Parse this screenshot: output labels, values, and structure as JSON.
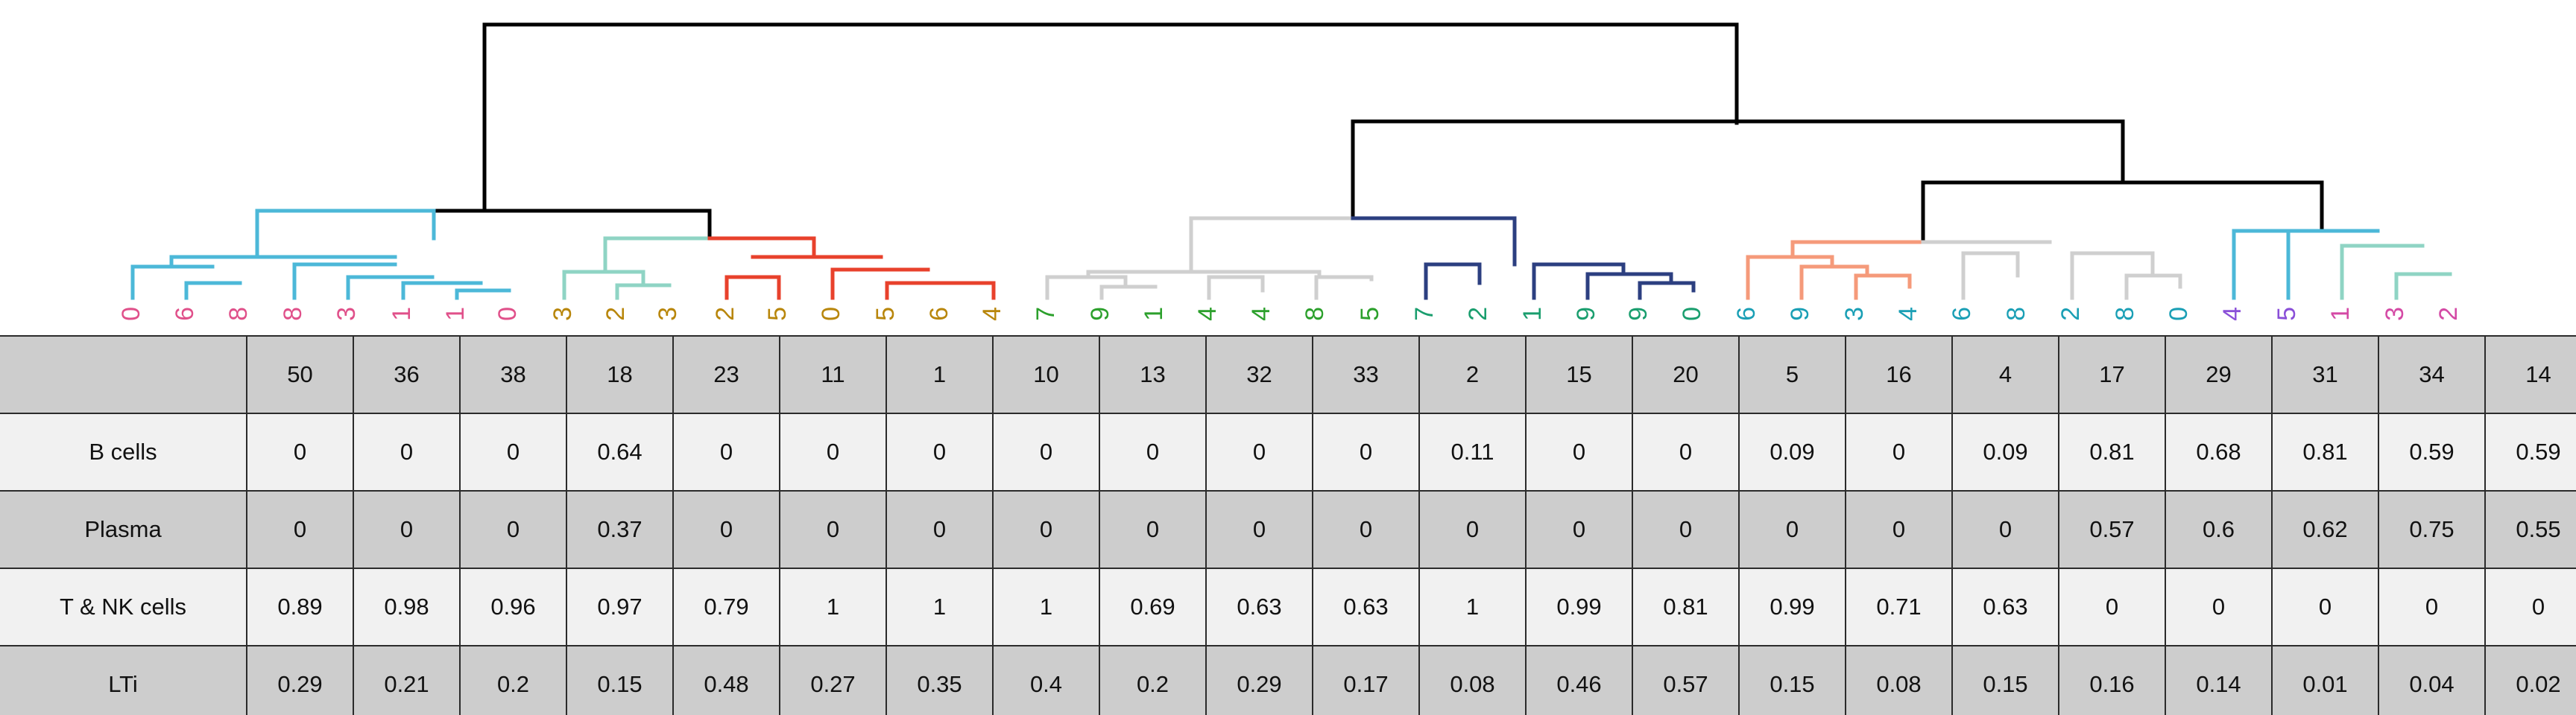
{
  "chart_data": {
    "type": "table",
    "dendrogram": {
      "leaf_labels": [
        "0",
        "6",
        "8",
        "8",
        "3",
        "1",
        "1",
        "0",
        "3",
        "2",
        "3",
        "2",
        "5",
        "0",
        "5",
        "6",
        "4",
        "7",
        "9",
        "1",
        "4",
        "4",
        "8",
        "5",
        "7",
        "2",
        "1",
        "9",
        "9",
        "0",
        "6",
        "9",
        "3",
        "4",
        "6",
        "8",
        "2",
        "8",
        "0",
        "4",
        "5",
        "1",
        "3",
        "2"
      ],
      "leaf_colors": [
        "#e0508a",
        "#e0508a",
        "#e0508a",
        "#e0508a",
        "#e0508a",
        "#e0508a",
        "#e0508a",
        "#e0508a",
        "#b8860b",
        "#b8860b",
        "#b8860b",
        "#b8860b",
        "#b8860b",
        "#b8860b",
        "#b8860b",
        "#b8860b",
        "#b8860b",
        "#2ca02c",
        "#2ca02c",
        "#2ca02c",
        "#2ca02c",
        "#2ca02c",
        "#2ca02c",
        "#2ca02c",
        "#1a9e6e",
        "#1a9e6e",
        "#1a9e6e",
        "#1a9e6e",
        "#1a9e6e",
        "#1a9e6e",
        "#1a9fb5",
        "#1a9fb5",
        "#1a9fb5",
        "#1a9fb5",
        "#1a9fb5",
        "#1a9fb5",
        "#1a9fb5",
        "#1a9fb5",
        "#1a9fb5",
        "#8a4fd8",
        "#8a4fd8",
        "#d44aa5",
        "#d44aa5",
        "#d44aa5"
      ],
      "branch_colors": {
        "root": "#000000",
        "light_blue": "#4cb8d8",
        "mint": "#8fd4c4",
        "red": "#e8412c",
        "gray": "#cfcfcf",
        "navy": "#2c3f80",
        "salmon": "#f59a7a"
      }
    },
    "columns": [
      "50",
      "36",
      "38",
      "18",
      "23",
      "11",
      "1",
      "10",
      "13",
      "32",
      "33",
      "2",
      "15",
      "20",
      "5",
      "16",
      "4",
      "17",
      "29",
      "31",
      "34",
      "14"
    ],
    "rows": [
      {
        "label": "B cells",
        "values": [
          "0",
          "0",
          "0",
          "0.64",
          "0",
          "0",
          "0",
          "0",
          "0",
          "0",
          "0",
          "0.11",
          "0",
          "0",
          "0.09",
          "0",
          "0.09",
          "0.81",
          "0.68",
          "0.81",
          "0.59",
          "0.59"
        ]
      },
      {
        "label": "Plasma",
        "values": [
          "0",
          "0",
          "0",
          "0.37",
          "0",
          "0",
          "0",
          "0",
          "0",
          "0",
          "0",
          "0",
          "0",
          "0",
          "0",
          "0",
          "0",
          "0.57",
          "0.6",
          "0.62",
          "0.75",
          "0.55"
        ]
      },
      {
        "label": "T & NK cells",
        "values": [
          "0.89",
          "0.98",
          "0.96",
          "0.97",
          "0.79",
          "1",
          "1",
          "1",
          "0.69",
          "0.63",
          "0.63",
          "1",
          "0.99",
          "0.81",
          "0.99",
          "0.71",
          "0.63",
          "0",
          "0",
          "0",
          "0",
          "0"
        ]
      },
      {
        "label": "LTi",
        "values": [
          "0.29",
          "0.21",
          "0.2",
          "0.15",
          "0.48",
          "0.27",
          "0.35",
          "0.4",
          "0.2",
          "0.29",
          "0.17",
          "0.08",
          "0.46",
          "0.57",
          "0.15",
          "0.08",
          "0.15",
          "0.16",
          "0.14",
          "0.01",
          "0.04",
          "0.02"
        ]
      }
    ],
    "row_colors": [
      "#cdcdcd",
      "#f1f1f1",
      "#cdcdcd",
      "#f1f1f1",
      "#cdcdcd"
    ]
  }
}
